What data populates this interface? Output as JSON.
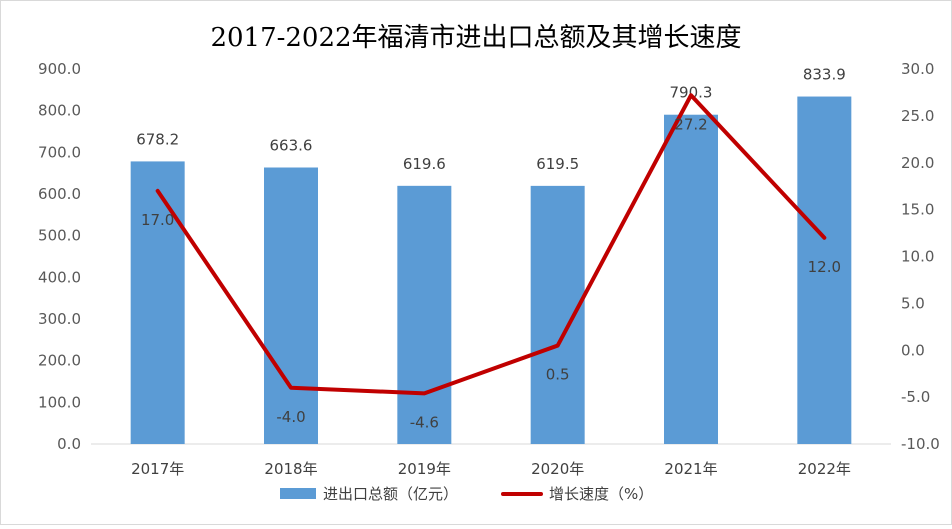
{
  "chart_data": {
    "type": "bar+line",
    "title": "2017-2022年福清市进出口总额及其增长速度",
    "categories": [
      "2017年",
      "2018年",
      "2019年",
      "2020年",
      "2021年",
      "2022年"
    ],
    "series": [
      {
        "name": "进出口总额（亿元）",
        "type": "bar",
        "axis": "left",
        "color": "#5b9bd5",
        "values": [
          678.2,
          663.6,
          619.6,
          619.5,
          790.3,
          833.9
        ],
        "labels": [
          "678.2",
          "663.6",
          "619.6",
          "619.5",
          "790.3",
          "833.9"
        ]
      },
      {
        "name": "增长速度（%）",
        "type": "line",
        "axis": "right",
        "color": "#c00000",
        "values": [
          17.0,
          -4.0,
          -4.6,
          0.5,
          27.2,
          12.0
        ],
        "labels": [
          "17.0",
          "-4.0",
          "-4.6",
          "0.5",
          "27.2",
          "12.0"
        ]
      }
    ],
    "y_left": {
      "range": [
        0,
        900
      ],
      "ticks": [
        0,
        100,
        200,
        300,
        400,
        500,
        600,
        700,
        800,
        900
      ],
      "tick_labels": [
        "0.0",
        "100.0",
        "200.0",
        "300.0",
        "400.0",
        "500.0",
        "600.0",
        "700.0",
        "800.0",
        "900.0"
      ]
    },
    "y_right": {
      "range": [
        -10,
        30
      ],
      "ticks": [
        -10,
        -5,
        0,
        5,
        10,
        15,
        20,
        25,
        30
      ],
      "tick_labels": [
        "-10.0",
        "-5.0",
        "0.0",
        "5.0",
        "10.0",
        "15.0",
        "20.0",
        "25.0",
        "30.0"
      ]
    },
    "grid": false,
    "legend": "bottom-center"
  }
}
